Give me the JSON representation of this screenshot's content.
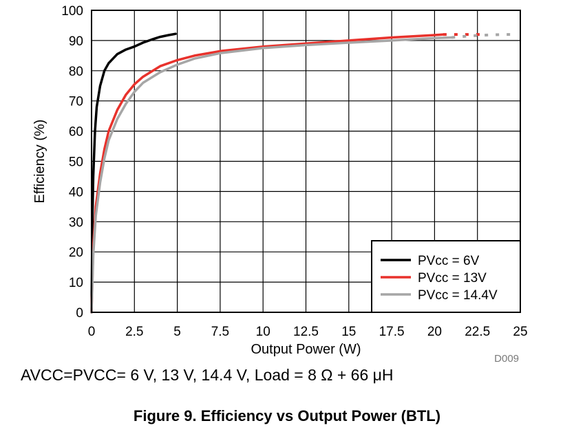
{
  "chart_data": {
    "type": "line",
    "xlabel": "Output Power (W)",
    "ylabel": "Efficiency (%)",
    "xlim": [
      0,
      25
    ],
    "ylim": [
      0,
      100
    ],
    "x_ticks": [
      "0",
      "2.5",
      "5",
      "7.5",
      "10",
      "12.5",
      "15",
      "17.5",
      "20",
      "22.5",
      "25"
    ],
    "y_ticks": [
      "0",
      "10",
      "20",
      "30",
      "40",
      "50",
      "60",
      "70",
      "80",
      "90",
      "100"
    ],
    "grid": true,
    "legend_position": "bottom-right",
    "figure_code": "D009",
    "series": [
      {
        "name": "PVcc = 6V",
        "color": "#000000",
        "x": [
          0,
          0.05,
          0.1,
          0.2,
          0.3,
          0.5,
          0.75,
          1.0,
          1.5,
          2.0,
          2.5,
          3.0,
          3.5,
          4.0,
          4.5,
          4.9
        ],
        "y": [
          0,
          30,
          45,
          60,
          68,
          75,
          80,
          82.5,
          85.5,
          87,
          88,
          89.3,
          90.3,
          91.2,
          91.8,
          92.2
        ]
      },
      {
        "name": "PVcc = 13V",
        "color": "#e8322c",
        "dashed_from_x": 20.5,
        "x": [
          0,
          0.1,
          0.25,
          0.5,
          0.75,
          1.0,
          1.5,
          2.0,
          2.5,
          3.0,
          4.0,
          5.0,
          6.0,
          7.5,
          10,
          12.5,
          15,
          17.5,
          20,
          20.5,
          21,
          22,
          23
        ],
        "y": [
          0,
          22,
          35,
          46,
          54,
          60,
          67,
          72,
          75.5,
          78,
          81.5,
          83.5,
          85,
          86.5,
          88,
          89,
          90,
          91,
          91.8,
          92,
          92,
          92,
          92
        ]
      },
      {
        "name": "PVcc = 14.4V",
        "color": "#a6a6a6",
        "dashed_from_x": 21,
        "x": [
          0,
          0.1,
          0.25,
          0.5,
          0.75,
          1.0,
          1.5,
          2.0,
          2.5,
          3.0,
          4.0,
          5.0,
          6.0,
          7.5,
          10,
          12.5,
          15,
          17.5,
          20,
          21,
          22,
          23,
          24,
          24.8
        ],
        "y": [
          0,
          19,
          32,
          43,
          51,
          57,
          64,
          69,
          73,
          76,
          79.5,
          82,
          84,
          85.8,
          87.5,
          88.5,
          89.3,
          90,
          90.8,
          91,
          91.5,
          91.8,
          92,
          92
        ]
      }
    ]
  },
  "annotations": {
    "condition": "AVCC=PVCC= 6 V, 13 V, 14.4 V, Load = 8 Ω + 66 μH",
    "caption": "Figure 9. Efficiency vs Output Power (BTL)"
  }
}
